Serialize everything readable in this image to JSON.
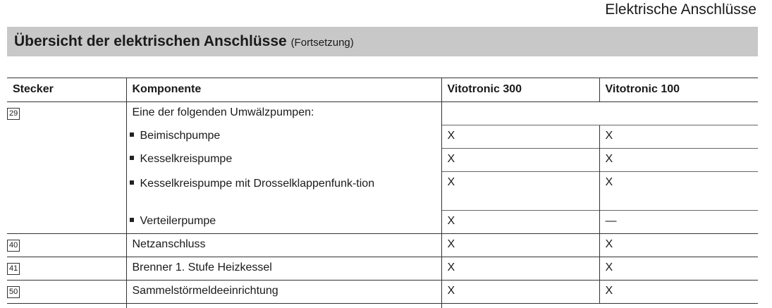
{
  "chapter_header": "Elektrische Anschlüsse",
  "section": {
    "title": "Übersicht der elektrischen Anschlüsse",
    "subtitle": "(Fortsetzung)"
  },
  "table": {
    "headers": [
      "Stecker",
      "Komponente",
      "Vitotronic 300",
      "Vitotronic 100"
    ],
    "group": {
      "stecker": "29",
      "intro": "Eine der folgenden Umwälzpumpen:",
      "items": [
        {
          "komponente": "Beimischpumpe",
          "v300": "X",
          "v100": "X"
        },
        {
          "komponente": "Kesselkreispumpe",
          "v300": "X",
          "v100": "X"
        },
        {
          "komponente": "Kesselkreispumpe mit Drosselklappenfunk-tion",
          "v300": "X",
          "v100": "X"
        },
        {
          "komponente": "Verteilerpumpe",
          "v300": "X",
          "v100": "—"
        }
      ]
    },
    "rows": [
      {
        "stecker": "40",
        "komponente": "Netzanschluss",
        "v300": "X",
        "v100": "X"
      },
      {
        "stecker": "41",
        "komponente": "Brenner 1. Stufe Heizkessel",
        "v300": "X",
        "v100": "X"
      },
      {
        "stecker": "50",
        "komponente": "Sammelstörmeldeeinrichtung",
        "v300": "X",
        "v100": "X"
      }
    ]
  }
}
